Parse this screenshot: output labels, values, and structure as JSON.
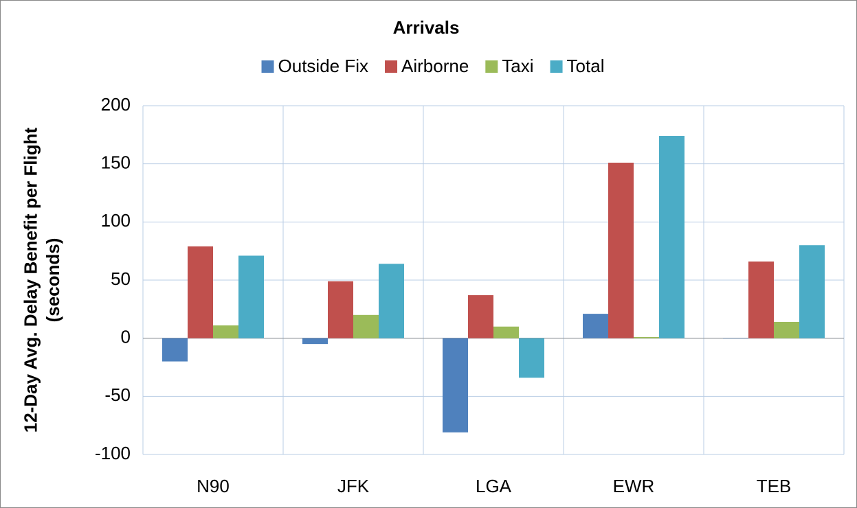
{
  "chart_data": {
    "type": "bar",
    "title": "Arrivals",
    "y_label": "12-Day Avg. Delay Benefit per Flight (seconds)",
    "categories": [
      "N90",
      "JFK",
      "LGA",
      "EWR",
      "TEB"
    ],
    "series": [
      {
        "name": "Outside Fix",
        "color": "#4f81bd",
        "values": [
          -20,
          -5,
          -81,
          21,
          0
        ]
      },
      {
        "name": "Airborne",
        "color": "#c0504d",
        "values": [
          79,
          49,
          37,
          151,
          66
        ]
      },
      {
        "name": "Taxi",
        "color": "#9bbb59",
        "values": [
          11,
          20,
          10,
          1,
          14
        ]
      },
      {
        "name": "Total",
        "color": "#4bacc6",
        "values": [
          71,
          64,
          -34,
          174,
          80
        ]
      }
    ],
    "ylim": [
      -100,
      200
    ],
    "yticks": [
      -100,
      -50,
      0,
      50,
      100,
      150,
      200
    ],
    "grid": true,
    "legend": "top"
  }
}
